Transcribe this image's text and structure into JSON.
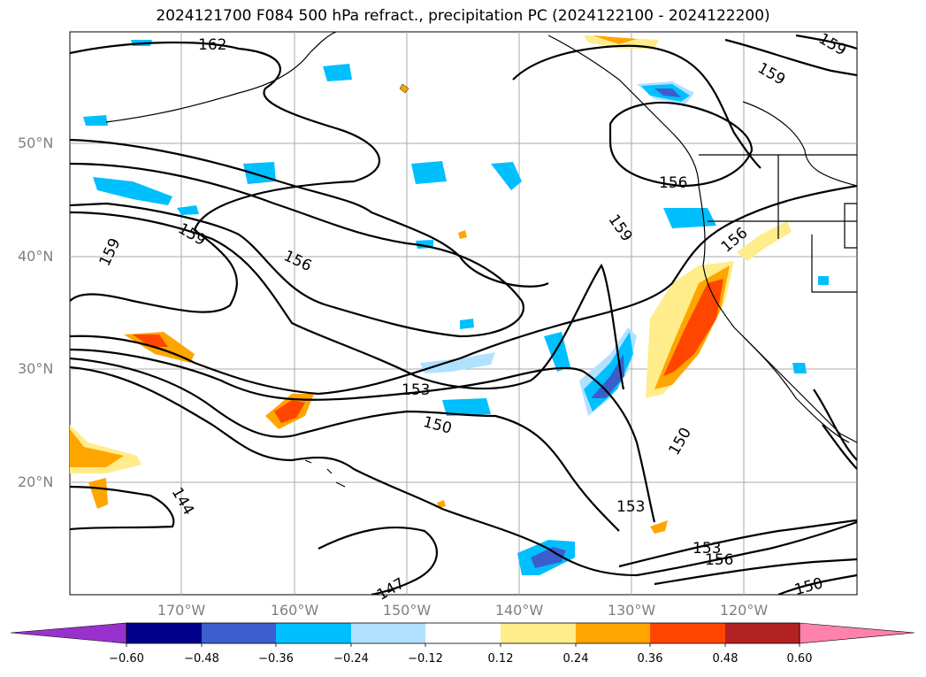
{
  "title": "2024121700 F084 500 hPa refract., precipitation PC (2024122100 - 2024122200)",
  "lat_labels": [
    "50°N",
    "40°N",
    "30°N",
    "20°N"
  ],
  "lon_labels": [
    "170°W",
    "160°W",
    "150°W",
    "140°W",
    "130°W",
    "120°W"
  ],
  "contour_labels": [
    "162",
    "159",
    "159",
    "159",
    "159",
    "156",
    "156",
    "156",
    "159",
    "153",
    "150",
    "153",
    "150",
    "144",
    "147",
    "153",
    "156",
    "150"
  ],
  "colorbar": {
    "ticks": [
      "−0.60",
      "−0.48",
      "−0.36",
      "−0.24",
      "−0.12",
      "0.12",
      "0.24",
      "0.36",
      "0.48",
      "0.60"
    ],
    "colors": [
      "#9932cc",
      "#00008b",
      "#3a5fcd",
      "#00bfff",
      "#b0e2ff",
      "#ffffff",
      "#ffec8b",
      "#ffa500",
      "#ff4500",
      "#b22222",
      "#ff82ab"
    ]
  }
}
